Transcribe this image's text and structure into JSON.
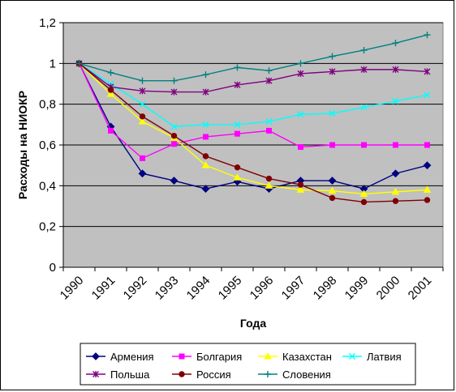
{
  "chart_data": {
    "type": "line",
    "title": "",
    "xlabel": "Года",
    "ylabel": "Расходы на НИОКР",
    "ylim": [
      0,
      1.2
    ],
    "yticks": [
      0,
      0.2,
      0.4,
      0.6,
      0.8,
      1,
      1.2
    ],
    "ytick_labels": [
      "0",
      "0,2",
      "0,4",
      "0,6",
      "0,8",
      "1",
      "1,2"
    ],
    "categories": [
      "1990",
      "1991",
      "1992",
      "1993",
      "1994",
      "1995",
      "1996",
      "1997",
      "1998",
      "1999",
      "2000",
      "2001"
    ],
    "plot_background": "#c0c0c0",
    "grid": true,
    "legend_position": "bottom",
    "series": [
      {
        "name": "Армения",
        "color": "#000080",
        "marker": "diamond",
        "values": [
          1.0,
          0.69,
          0.46,
          0.425,
          0.385,
          0.42,
          0.385,
          0.425,
          0.425,
          0.385,
          0.46,
          0.5
        ]
      },
      {
        "name": "Болгария",
        "color": "#ff00ff",
        "marker": "square",
        "values": [
          1.0,
          0.67,
          0.535,
          0.605,
          0.64,
          0.655,
          0.67,
          0.59,
          0.6,
          0.6,
          0.6,
          0.6
        ]
      },
      {
        "name": "Казахстан",
        "color": "#ffff00",
        "marker": "triangle",
        "values": [
          1.0,
          0.85,
          0.715,
          0.635,
          0.5,
          0.44,
          0.4,
          0.38,
          0.375,
          0.36,
          0.37,
          0.38
        ]
      },
      {
        "name": "Латвия",
        "color": "#00ffff",
        "marker": "x",
        "values": [
          1.0,
          0.9,
          0.8,
          0.69,
          0.7,
          0.7,
          0.715,
          0.75,
          0.755,
          0.785,
          0.815,
          0.845
        ]
      },
      {
        "name": "Польша",
        "color": "#800080",
        "marker": "star",
        "values": [
          1.0,
          0.885,
          0.865,
          0.86,
          0.86,
          0.895,
          0.915,
          0.95,
          0.96,
          0.97,
          0.97,
          0.96
        ]
      },
      {
        "name": "Россия",
        "color": "#800000",
        "marker": "circle",
        "values": [
          1.0,
          0.87,
          0.74,
          0.645,
          0.545,
          0.49,
          0.435,
          0.405,
          0.34,
          0.32,
          0.325,
          0.33
        ]
      },
      {
        "name": "Словения",
        "color": "#008080",
        "marker": "plus",
        "values": [
          1.0,
          0.955,
          0.915,
          0.915,
          0.945,
          0.98,
          0.965,
          1.0,
          1.035,
          1.065,
          1.1,
          1.14
        ]
      }
    ]
  }
}
